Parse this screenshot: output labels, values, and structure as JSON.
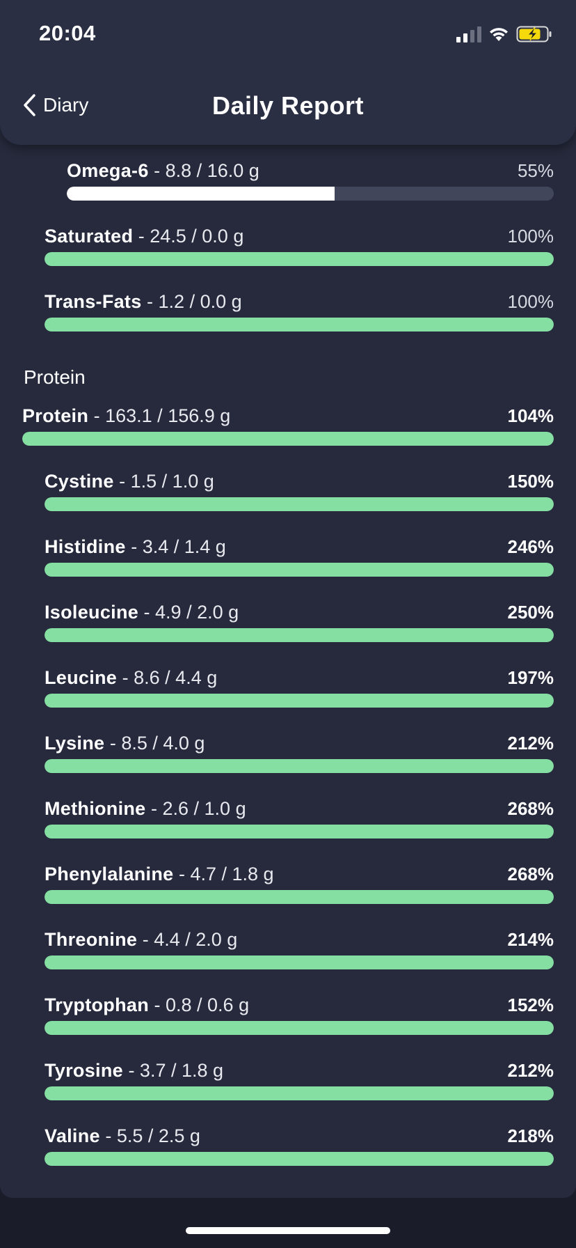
{
  "status": {
    "time": "20:04"
  },
  "header": {
    "back_label": "Diary",
    "title": "Daily Report"
  },
  "fats": [
    {
      "name": "Omega-6",
      "amount": " - 8.8 / 16.0 g",
      "percent": "55%",
      "fill": 0.55,
      "color": "#ffffff"
    },
    {
      "name": "Saturated",
      "amount": " - 24.5 / 0.0 g",
      "percent": "100%",
      "fill": 1.0,
      "color": "#85dfa3"
    },
    {
      "name": "Trans-Fats",
      "amount": " - 1.2 / 0.0 g",
      "percent": "100%",
      "fill": 1.0,
      "color": "#85dfa3"
    }
  ],
  "protein_section": {
    "title": "Protein",
    "total": {
      "name": "Protein",
      "amount": " - 163.1 / 156.9 g",
      "percent": "104%",
      "fill": 1.0
    },
    "amino_acids": [
      {
        "name": "Cystine",
        "amount": " - 1.5 / 1.0 g",
        "percent": "150%"
      },
      {
        "name": "Histidine",
        "amount": " - 3.4 / 1.4 g",
        "percent": "246%"
      },
      {
        "name": "Isoleucine",
        "amount": " - 4.9 / 2.0 g",
        "percent": "250%"
      },
      {
        "name": "Leucine",
        "amount": " - 8.6 / 4.4 g",
        "percent": "197%"
      },
      {
        "name": "Lysine",
        "amount": " - 8.5 / 4.0 g",
        "percent": "212%"
      },
      {
        "name": "Methionine",
        "amount": " - 2.6 / 1.0 g",
        "percent": "268%"
      },
      {
        "name": "Phenylalanine",
        "amount": " - 4.7 / 1.8 g",
        "percent": "268%"
      },
      {
        "name": "Threonine",
        "amount": " - 4.4 / 2.0 g",
        "percent": "214%"
      },
      {
        "name": "Tryptophan",
        "amount": " - 0.8 / 0.6 g",
        "percent": "152%"
      },
      {
        "name": "Tyrosine",
        "amount": " - 3.7 / 1.8 g",
        "percent": "212%"
      },
      {
        "name": "Valine",
        "amount": " - 5.5 / 2.5 g",
        "percent": "218%"
      }
    ]
  },
  "colors": {
    "accent_green": "#85dfa3",
    "track": "#42465a",
    "background": "#262a3c"
  }
}
